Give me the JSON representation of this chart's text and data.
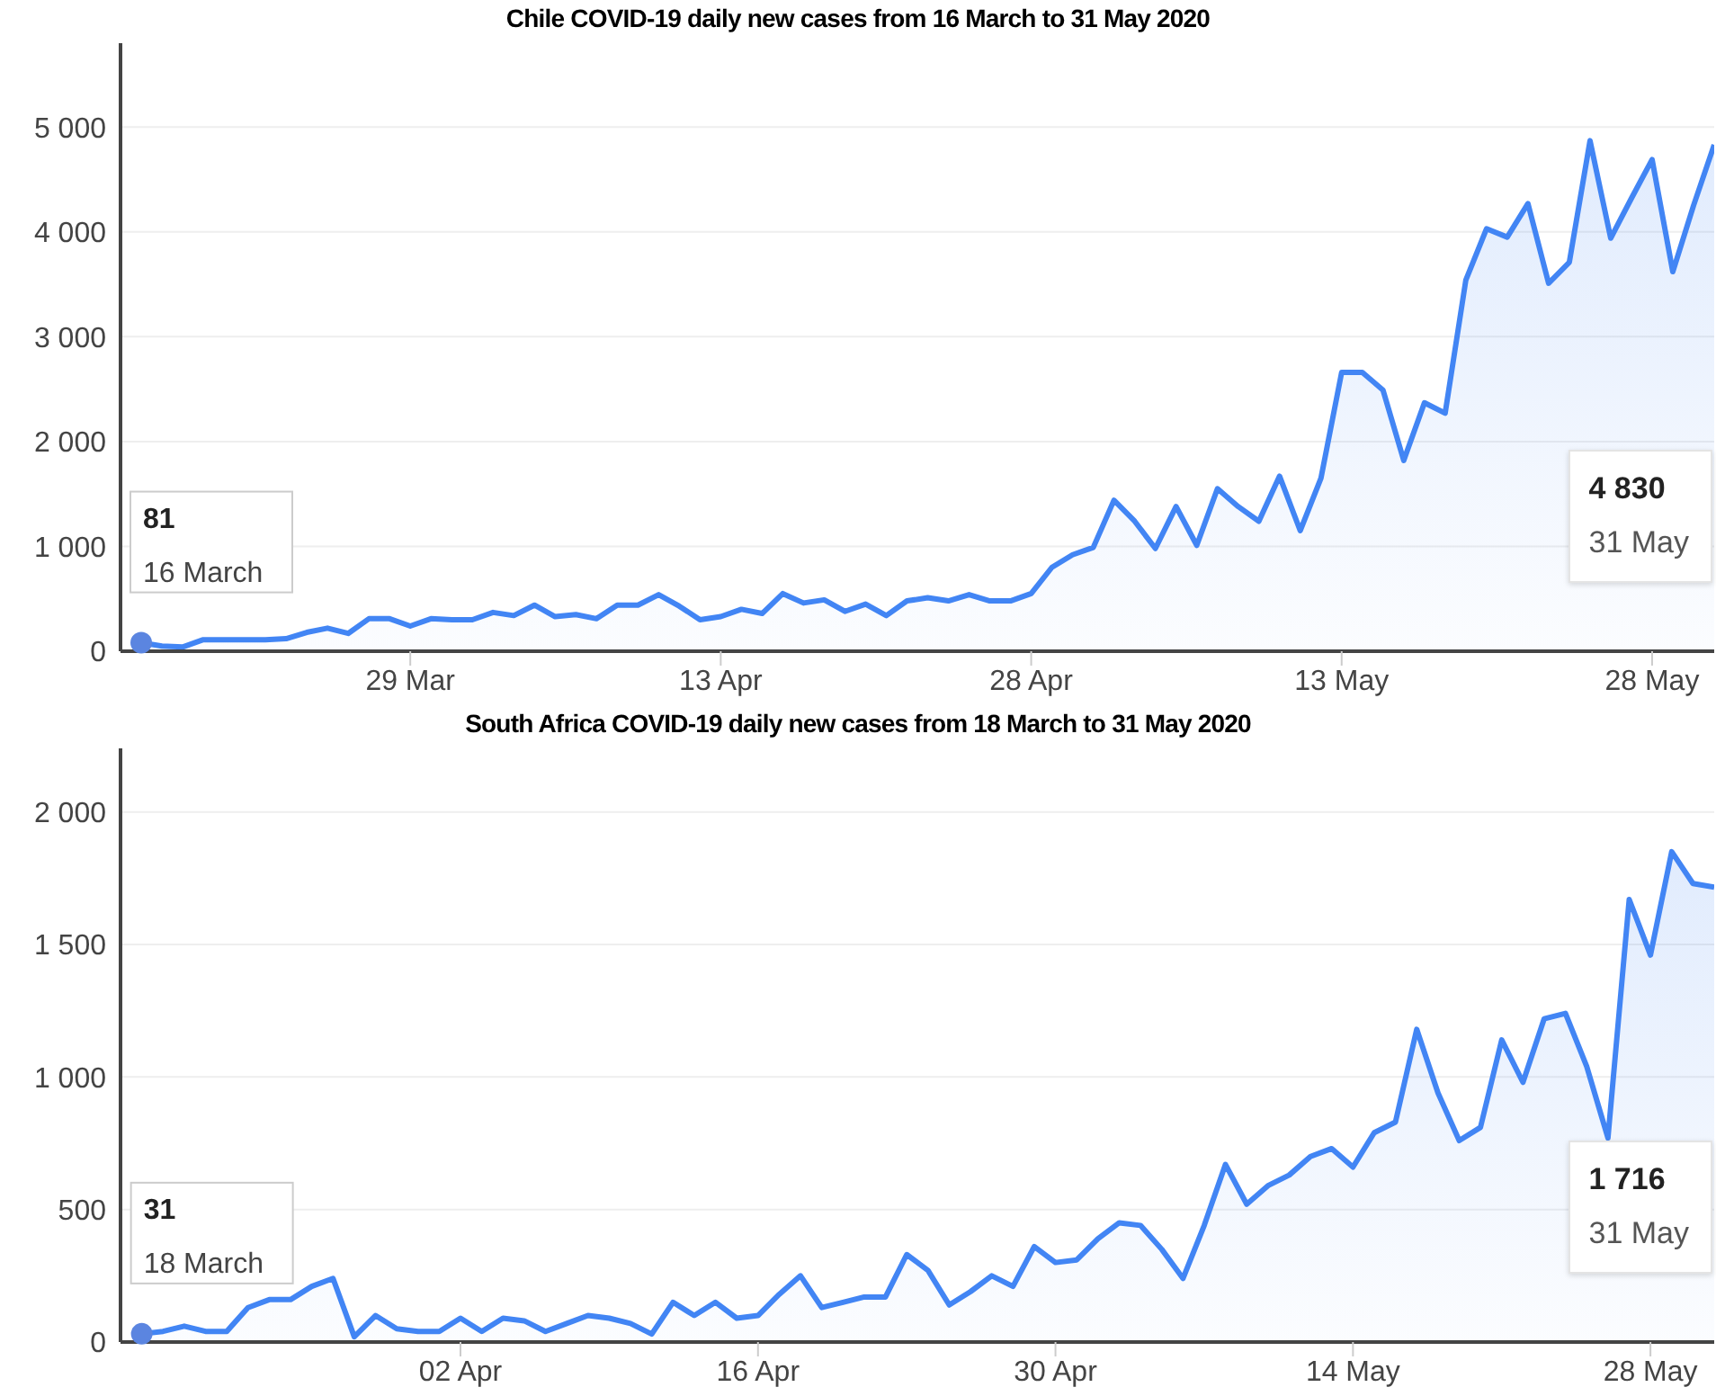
{
  "chart_data": [
    {
      "type": "area",
      "title": "Chile COVID-19 daily new cases from 16 March to 31 May 2020",
      "x": [
        "2020-03-16",
        "2020-03-17",
        "2020-03-18",
        "2020-03-19",
        "2020-03-20",
        "2020-03-21",
        "2020-03-22",
        "2020-03-23",
        "2020-03-24",
        "2020-03-25",
        "2020-03-26",
        "2020-03-27",
        "2020-03-28",
        "2020-03-29",
        "2020-03-30",
        "2020-03-31",
        "2020-04-01",
        "2020-04-02",
        "2020-04-03",
        "2020-04-04",
        "2020-04-05",
        "2020-04-06",
        "2020-04-07",
        "2020-04-08",
        "2020-04-09",
        "2020-04-10",
        "2020-04-11",
        "2020-04-12",
        "2020-04-13",
        "2020-04-14",
        "2020-04-15",
        "2020-04-16",
        "2020-04-17",
        "2020-04-18",
        "2020-04-19",
        "2020-04-20",
        "2020-04-21",
        "2020-04-22",
        "2020-04-23",
        "2020-04-24",
        "2020-04-25",
        "2020-04-26",
        "2020-04-27",
        "2020-04-28",
        "2020-04-29",
        "2020-04-30",
        "2020-05-01",
        "2020-05-02",
        "2020-05-03",
        "2020-05-04",
        "2020-05-05",
        "2020-05-06",
        "2020-05-07",
        "2020-05-08",
        "2020-05-09",
        "2020-05-10",
        "2020-05-11",
        "2020-05-12",
        "2020-05-13",
        "2020-05-14",
        "2020-05-15",
        "2020-05-16",
        "2020-05-17",
        "2020-05-18",
        "2020-05-19",
        "2020-05-20",
        "2020-05-21",
        "2020-05-22",
        "2020-05-23",
        "2020-05-24",
        "2020-05-25",
        "2020-05-26",
        "2020-05-27",
        "2020-05-28",
        "2020-05-29",
        "2020-05-30",
        "2020-05-31"
      ],
      "series": [
        {
          "color": "#4285f4",
          "values": [
            81,
            50,
            40,
            110,
            110,
            110,
            110,
            120,
            180,
            220,
            170,
            310,
            310,
            240,
            310,
            300,
            300,
            370,
            340,
            440,
            330,
            350,
            310,
            440,
            440,
            540,
            430,
            300,
            330,
            400,
            360,
            550,
            460,
            490,
            380,
            450,
            340,
            480,
            510,
            480,
            540,
            480,
            480,
            550,
            800,
            920,
            990,
            1440,
            1240,
            980,
            1380,
            1010,
            1550,
            1380,
            1240,
            1670,
            1150,
            1650,
            2660,
            2660,
            2490,
            1820,
            2370,
            2270,
            3540,
            4030,
            3950,
            4270,
            3510,
            3710,
            4870,
            3940,
            4320,
            4690,
            3620,
            4250,
            4830
          ]
        }
      ],
      "xlim": [
        "2020-03-15",
        "2020-05-31"
      ],
      "xticks": [
        {
          "value": "2020-03-29",
          "label": "29 Mar"
        },
        {
          "value": "2020-04-13",
          "label": "13 Apr"
        },
        {
          "value": "2020-04-28",
          "label": "28 Apr"
        },
        {
          "value": "2020-05-13",
          "label": "13 May"
        },
        {
          "value": "2020-05-28",
          "label": "28 May"
        }
      ],
      "ylim": [
        0,
        5800
      ],
      "yticks": [
        {
          "value": 0,
          "label": "0"
        },
        {
          "value": 1000,
          "label": "1 000"
        },
        {
          "value": 2000,
          "label": "2 000"
        },
        {
          "value": 3000,
          "label": "3 000"
        },
        {
          "value": 4000,
          "label": "4 000"
        },
        {
          "value": 5000,
          "label": "5 000"
        }
      ],
      "grid": "y",
      "marker": "none",
      "annotations": [
        {
          "text": "81\n16 March",
          "x": "2020-03-16",
          "y": 81
        },
        "4 830\n31 May"
      ]
    },
    {
      "type": "area",
      "title": "South Africa COVID-19 daily new cases from 18 March to 31 May 2020",
      "x": [
        "2020-03-18",
        "2020-03-19",
        "2020-03-20",
        "2020-03-21",
        "2020-03-22",
        "2020-03-23",
        "2020-03-24",
        "2020-03-25",
        "2020-03-26",
        "2020-03-27",
        "2020-03-28",
        "2020-03-29",
        "2020-03-30",
        "2020-03-31",
        "2020-04-01",
        "2020-04-02",
        "2020-04-03",
        "2020-04-04",
        "2020-04-05",
        "2020-04-06",
        "2020-04-07",
        "2020-04-08",
        "2020-04-09",
        "2020-04-10",
        "2020-04-11",
        "2020-04-12",
        "2020-04-13",
        "2020-04-14",
        "2020-04-15",
        "2020-04-16",
        "2020-04-17",
        "2020-04-18",
        "2020-04-19",
        "2020-04-20",
        "2020-04-21",
        "2020-04-22",
        "2020-04-23",
        "2020-04-24",
        "2020-04-25",
        "2020-04-26",
        "2020-04-27",
        "2020-04-28",
        "2020-04-29",
        "2020-04-30",
        "2020-05-01",
        "2020-05-02",
        "2020-05-03",
        "2020-05-04",
        "2020-05-05",
        "2020-05-06",
        "2020-05-07",
        "2020-05-08",
        "2020-05-09",
        "2020-05-10",
        "2020-05-11",
        "2020-05-12",
        "2020-05-13",
        "2020-05-14",
        "2020-05-15",
        "2020-05-16",
        "2020-05-17",
        "2020-05-18",
        "2020-05-19",
        "2020-05-20",
        "2020-05-21",
        "2020-05-22",
        "2020-05-23",
        "2020-05-24",
        "2020-05-25",
        "2020-05-26",
        "2020-05-27",
        "2020-05-28",
        "2020-05-29",
        "2020-05-30",
        "2020-05-31"
      ],
      "series": [
        {
          "color": "#4285f4",
          "values": [
            31,
            40,
            60,
            40,
            40,
            130,
            160,
            160,
            210,
            240,
            20,
            100,
            50,
            40,
            40,
            90,
            40,
            90,
            80,
            40,
            70,
            100,
            90,
            70,
            30,
            150,
            100,
            150,
            90,
            100,
            180,
            250,
            130,
            150,
            170,
            170,
            330,
            270,
            140,
            190,
            250,
            210,
            360,
            300,
            310,
            390,
            450,
            440,
            350,
            240,
            440,
            670,
            520,
            590,
            630,
            700,
            730,
            660,
            790,
            830,
            1180,
            940,
            760,
            810,
            1140,
            980,
            1220,
            1240,
            1040,
            770,
            1670,
            1460,
            1850,
            1730,
            1716
          ]
        }
      ],
      "xlim": [
        "2020-03-17",
        "2020-05-31"
      ],
      "xticks": [
        {
          "value": "2020-04-02",
          "label": "02 Apr"
        },
        {
          "value": "2020-04-16",
          "label": "16 Apr"
        },
        {
          "value": "2020-04-30",
          "label": "30 Apr"
        },
        {
          "value": "2020-05-14",
          "label": "14 May"
        },
        {
          "value": "2020-05-28",
          "label": "28 May"
        }
      ],
      "ylim": [
        0,
        2240
      ],
      "yticks": [
        {
          "value": 0,
          "label": "0"
        },
        500,
        {
          "value": 1000,
          "label": "1 000"
        },
        {
          "value": 1500,
          "label": "1 500"
        },
        {
          "value": 2000,
          "label": "2 000"
        }
      ],
      "grid": "y",
      "marker": "none",
      "annotations": [
        {
          "text": "31\n18 March",
          "x": "2020-03-18",
          "y": 31
        },
        "1 716\n31 May"
      ]
    }
  ]
}
